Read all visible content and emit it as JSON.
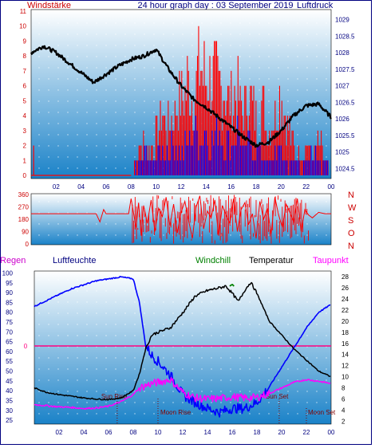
{
  "header": {
    "left": "Windstärke",
    "center": "24 hour graph day : 03 September 2019",
    "right": "Luftdruck"
  },
  "bottom_header": {
    "regen": "Regen",
    "luftfeuchte": "Luftfeuchte",
    "windchill": "Windchill",
    "temperatur": "Temperatur",
    "taupunkt": "Taupunkt"
  },
  "direction_letters": [
    "N",
    "W",
    "S",
    "O",
    "N"
  ],
  "events": {
    "sun_rise": "Sun Rise",
    "moon_rise": "Moon Rise",
    "sun_set": "Sun Set",
    "moon_set": "Moon Set"
  },
  "colors": {
    "grad_top": "#ffffff",
    "grad_bottom": "#1a82c8",
    "wind_red": "#ff0000",
    "wind_blue": "#0000ff",
    "pressure": "#000000",
    "humidity": "#0000ff",
    "temperature": "#000000",
    "dewpoint": "#ff00ff",
    "windchill": "#008000",
    "rain_line": "#ff0080",
    "event_text": "#800000",
    "axis_text_red": "#cc0000",
    "axis_text_blue": "#000080"
  },
  "chart_data": [
    {
      "type": "line",
      "name": "wind_pressure",
      "x_ticks": [
        "02",
        "04",
        "06",
        "08",
        "10",
        "12",
        "14",
        "16",
        "18",
        "20",
        "22",
        "00"
      ],
      "left_axis": {
        "label": "Windstärke",
        "ticks": [
          "11",
          "10",
          "9",
          "8",
          "7",
          "6",
          "5",
          "4",
          "3",
          "2",
          "1",
          "0"
        ],
        "ylim": [
          0,
          11
        ]
      },
      "right_axis": {
        "label": "Luftdruck",
        "ticks": [
          "1029",
          "1028.5",
          "1028",
          "1027.5",
          "1027",
          "1026.5",
          "1026",
          "1025.5",
          "1025",
          "1024.5"
        ],
        "ylim": [
          1024.2,
          1029.3
        ]
      },
      "pressure": {
        "x": [
          0,
          1,
          2,
          3,
          4,
          5,
          6,
          7,
          8,
          9,
          10,
          11,
          12,
          13,
          14,
          15,
          16,
          17,
          18,
          19,
          20,
          21,
          22,
          23,
          24
        ],
        "y": [
          1028.0,
          1028.2,
          1028.0,
          1027.7,
          1027.4,
          1027.1,
          1027.35,
          1027.6,
          1027.8,
          1027.9,
          1028.1,
          1027.5,
          1027.0,
          1026.6,
          1026.35,
          1026.05,
          1025.75,
          1025.45,
          1025.2,
          1025.3,
          1025.65,
          1026.1,
          1026.4,
          1026.45,
          1026.05
        ]
      },
      "gust_max": {
        "x": [
          0.0,
          0.3,
          1.0,
          8.0,
          8.5,
          9.0,
          9.5,
          10.0,
          10.5,
          11.0,
          11.5,
          12.0,
          12.5,
          13.0,
          13.5,
          14.0,
          14.5,
          15.0,
          15.5,
          16.0,
          16.5,
          17.0,
          17.5,
          18.0,
          18.5,
          19.0,
          19.5,
          20.0,
          20.5,
          21.0,
          21.5,
          22.0,
          22.5,
          23.0,
          23.5,
          24.0
        ],
        "y": [
          0,
          2,
          0,
          0,
          2,
          3,
          2,
          4,
          6,
          5,
          6,
          8,
          9,
          8,
          11,
          9,
          10,
          9,
          8,
          7,
          8,
          6,
          8,
          5,
          7,
          4,
          6,
          8,
          5,
          3,
          2,
          3,
          2,
          3,
          2,
          0
        ]
      },
      "wind_avg": {
        "x": [
          0.0,
          8.0,
          8.5,
          9.0,
          9.5,
          10.0,
          10.5,
          11.0,
          11.5,
          12.0,
          12.5,
          13.0,
          13.5,
          14.0,
          14.5,
          15.0,
          15.5,
          16.0,
          16.5,
          17.0,
          17.5,
          18.0,
          18.5,
          19.0,
          19.5,
          20.0,
          20.5,
          21.0,
          21.5,
          22.0,
          22.5,
          23.0,
          23.5,
          24.0
        ],
        "y": [
          0,
          0,
          1,
          2,
          1,
          2,
          2,
          2,
          3,
          2,
          3,
          4,
          3,
          4,
          3,
          4,
          3,
          3,
          4,
          2,
          3,
          2,
          2,
          1,
          2,
          2,
          1,
          1,
          1,
          1,
          2,
          1,
          1,
          0
        ]
      }
    },
    {
      "type": "line",
      "name": "wind_direction",
      "x_ticks": [
        "02",
        "04",
        "06",
        "08",
        "10",
        "12",
        "14",
        "16",
        "18",
        "20",
        "22",
        "00"
      ],
      "left_axis": {
        "ticks": [
          "360",
          "270",
          "180",
          "90",
          "0"
        ],
        "ylim": [
          0,
          360
        ]
      },
      "right_axis": {
        "ticks": [
          "N",
          "W",
          "S",
          "O",
          "N"
        ]
      },
      "direction": {
        "x": [
          0.0,
          5.2,
          5.5,
          5.8,
          6.0,
          7.8,
          8.0,
          8.2,
          8.4,
          8.6,
          8.8,
          9.0,
          9.3,
          9.6,
          9.9,
          10.2,
          10.5,
          10.8,
          11.1,
          11.4,
          11.7,
          12.0,
          12.3,
          12.6,
          12.9,
          13.2,
          13.5,
          13.8,
          14.1,
          14.4,
          14.7,
          15.0,
          15.3,
          15.6,
          15.9,
          16.2,
          16.5,
          16.8,
          17.1,
          17.4,
          17.7,
          18.0,
          18.3,
          18.6,
          18.9,
          19.2,
          19.5,
          19.8,
          20.1,
          20.4,
          20.7,
          21.0,
          21.3,
          21.6,
          21.9,
          22.2,
          22.5,
          23.0,
          23.5,
          24.0
        ],
        "y": [
          220,
          220,
          160,
          250,
          220,
          220,
          330,
          220,
          120,
          300,
          60,
          280,
          150,
          320,
          90,
          260,
          200,
          340,
          130,
          290,
          80,
          230,
          310,
          170,
          40,
          270,
          350,
          110,
          240,
          190,
          320,
          60,
          280,
          210,
          150,
          330,
          90,
          250,
          300,
          140,
          220,
          40,
          310,
          180,
          260,
          70,
          340,
          210,
          120,
          290,
          230,
          160,
          330,
          90,
          250,
          210,
          190,
          230,
          220,
          220
        ]
      }
    },
    {
      "type": "line",
      "name": "humidity_temperature",
      "x_ticks": [
        "02",
        "04",
        "06",
        "08",
        "10",
        "12",
        "14",
        "16",
        "18",
        "20",
        "22",
        "00"
      ],
      "left_axis": {
        "label": "Luftfeuchte",
        "ticks": [
          "100",
          "95",
          "90",
          "85",
          "80",
          "75",
          "70",
          "65",
          "60",
          "55",
          "50",
          "45",
          "40",
          "35",
          "30",
          "25"
        ],
        "ylim": [
          23,
          101
        ]
      },
      "right_axis": {
        "label": "Temperatur",
        "ticks": [
          "28",
          "26",
          "24",
          "22",
          "20",
          "18",
          "16",
          "14",
          "12",
          "10",
          "8",
          "6",
          "4",
          "2"
        ],
        "ylim": [
          1.5,
          29
        ]
      },
      "rain": {
        "label": "Regen",
        "value": "0"
      },
      "humidity": {
        "x": [
          0,
          1,
          2,
          3,
          4,
          5,
          6,
          7,
          8,
          8.5,
          9,
          9.5,
          10,
          11,
          12,
          13,
          14,
          15,
          16,
          17,
          18,
          19,
          20,
          21,
          22,
          23,
          24
        ],
        "y": [
          83,
          86,
          89,
          92,
          94,
          96,
          97,
          98,
          97,
          85,
          63,
          58,
          55,
          48,
          38,
          34,
          31,
          29,
          31,
          31,
          34,
          42,
          52,
          62,
          72,
          80,
          84
        ]
      },
      "temperature": {
        "x": [
          0,
          1,
          2,
          3,
          4,
          5,
          6,
          7,
          8,
          8.5,
          9,
          9.5,
          10,
          11,
          12,
          13,
          14,
          15,
          15.5,
          16,
          16.5,
          17,
          17.5,
          18,
          19,
          20,
          21,
          22,
          23,
          24
        ],
        "y": [
          8.0,
          7.2,
          6.8,
          6.5,
          6.2,
          6.0,
          5.9,
          6.2,
          7.5,
          10.5,
          15.0,
          17.5,
          18.0,
          18.8,
          21.5,
          24.5,
          25.5,
          26.0,
          26.3,
          25.0,
          23.5,
          25.5,
          27.0,
          25.0,
          20.0,
          17.5,
          15.0,
          13.0,
          11.0,
          10.0
        ]
      },
      "dewpoint": {
        "x": [
          0,
          1,
          2,
          3,
          4,
          5,
          6,
          7,
          8,
          8.5,
          9,
          9.5,
          10,
          11,
          12,
          13,
          14,
          15,
          16,
          17,
          18,
          19,
          20,
          21,
          22,
          23,
          24
        ],
        "y": [
          5.0,
          4.8,
          4.6,
          4.5,
          4.3,
          4.4,
          4.7,
          5.5,
          6.8,
          8.0,
          8.4,
          8.8,
          9.0,
          9.5,
          7.2,
          6.2,
          6.0,
          6.1,
          6.4,
          6.2,
          6.3,
          7.0,
          8.0,
          9.0,
          9.5,
          9.2,
          8.8
        ]
      },
      "windchill": {
        "x": [
          15.8,
          16.0,
          16.2
        ],
        "y": [
          26.3,
          26.6,
          26.2
        ]
      },
      "events": {
        "sun_rise": 6.7,
        "moon_rise": 10.0,
        "sun_set": 19.8,
        "moon_set": 22.0
      }
    }
  ]
}
